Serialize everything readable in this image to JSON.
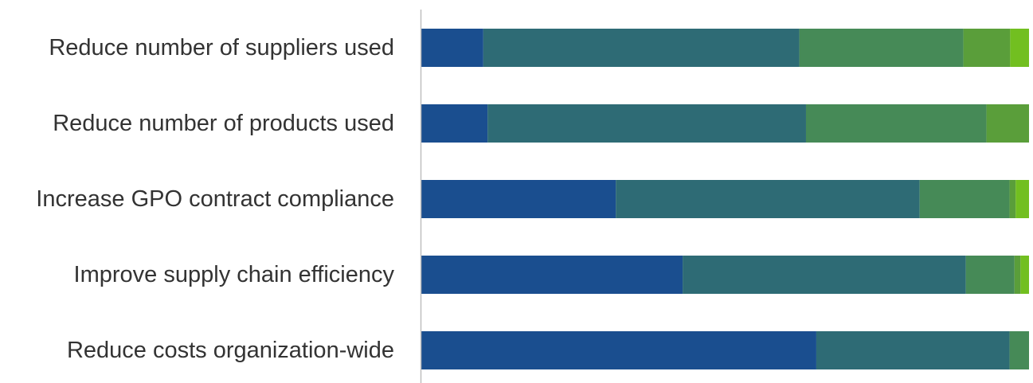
{
  "chart_data": {
    "type": "bar",
    "orientation": "horizontal",
    "stacked": true,
    "percent_stacked": true,
    "categories": [
      "Reduce number of suppliers used",
      "Reduce number of products used",
      "Increase GPO contract compliance",
      "Improve supply chain efficiency",
      "Reduce costs organization-wide"
    ],
    "series": [
      {
        "color": "#1a4e8f",
        "values": [
          10.2,
          10.9,
          32.0,
          43.0,
          65.0
        ]
      },
      {
        "color": "#2e6b75",
        "values": [
          52.0,
          52.4,
          50.0,
          46.6,
          31.8
        ]
      },
      {
        "color": "#468a57",
        "values": [
          27.0,
          29.7,
          14.8,
          8.0,
          3.2
        ]
      },
      {
        "color": "#5a9e3a",
        "values": [
          7.7,
          7.0,
          1.0,
          1.0,
          0
        ]
      },
      {
        "color": "#72bf20",
        "values": [
          3.1,
          0,
          2.2,
          1.4,
          0
        ]
      }
    ],
    "xlim": [
      0,
      100
    ],
    "grid": false,
    "legend": "none"
  }
}
